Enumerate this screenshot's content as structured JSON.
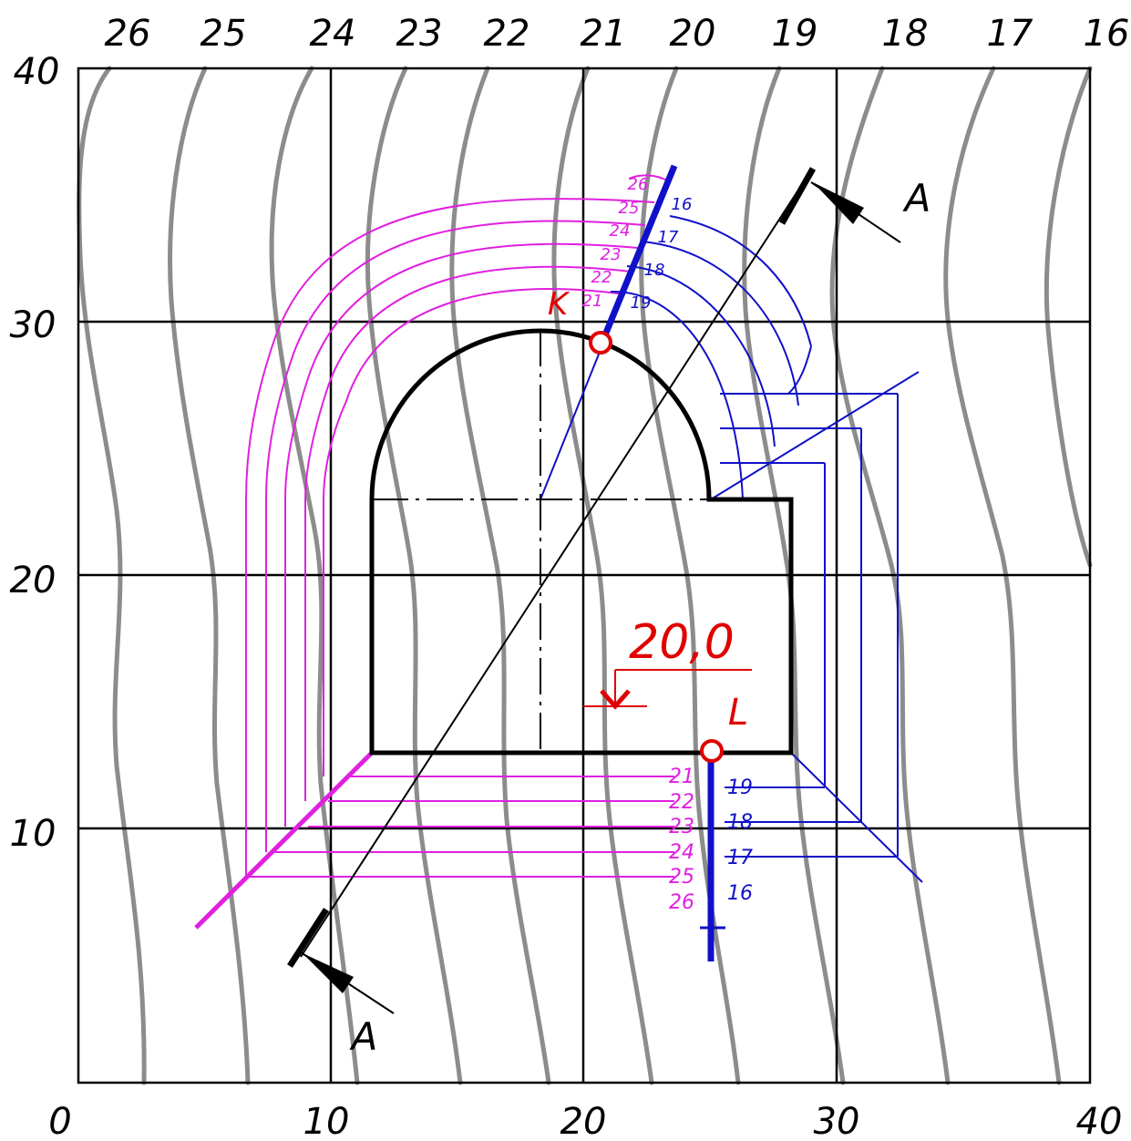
{
  "grid": {
    "x_labels": [
      "0",
      "10",
      "20",
      "30",
      "40"
    ],
    "y_labels": [
      "40",
      "30",
      "20",
      "10"
    ],
    "contour_labels": [
      "26",
      "25",
      "24",
      "23",
      "22",
      "21",
      "20",
      "19",
      "18",
      "17",
      "16"
    ]
  },
  "points": {
    "K": {
      "label": "K"
    },
    "L": {
      "label": "L"
    }
  },
  "section": {
    "label_top": "A",
    "label_bottom": "A"
  },
  "elevation_mark": {
    "value": "20,0"
  },
  "fill_scale": [
    "21",
    "22",
    "23",
    "24",
    "25",
    "26"
  ],
  "cut_scale": [
    "19",
    "18",
    "17",
    "16"
  ],
  "colors": {
    "contour": "#8c8c8c",
    "grid": "#000000",
    "fill": "#e020e0",
    "cut": "#1010c8",
    "accent": "#e00000"
  }
}
